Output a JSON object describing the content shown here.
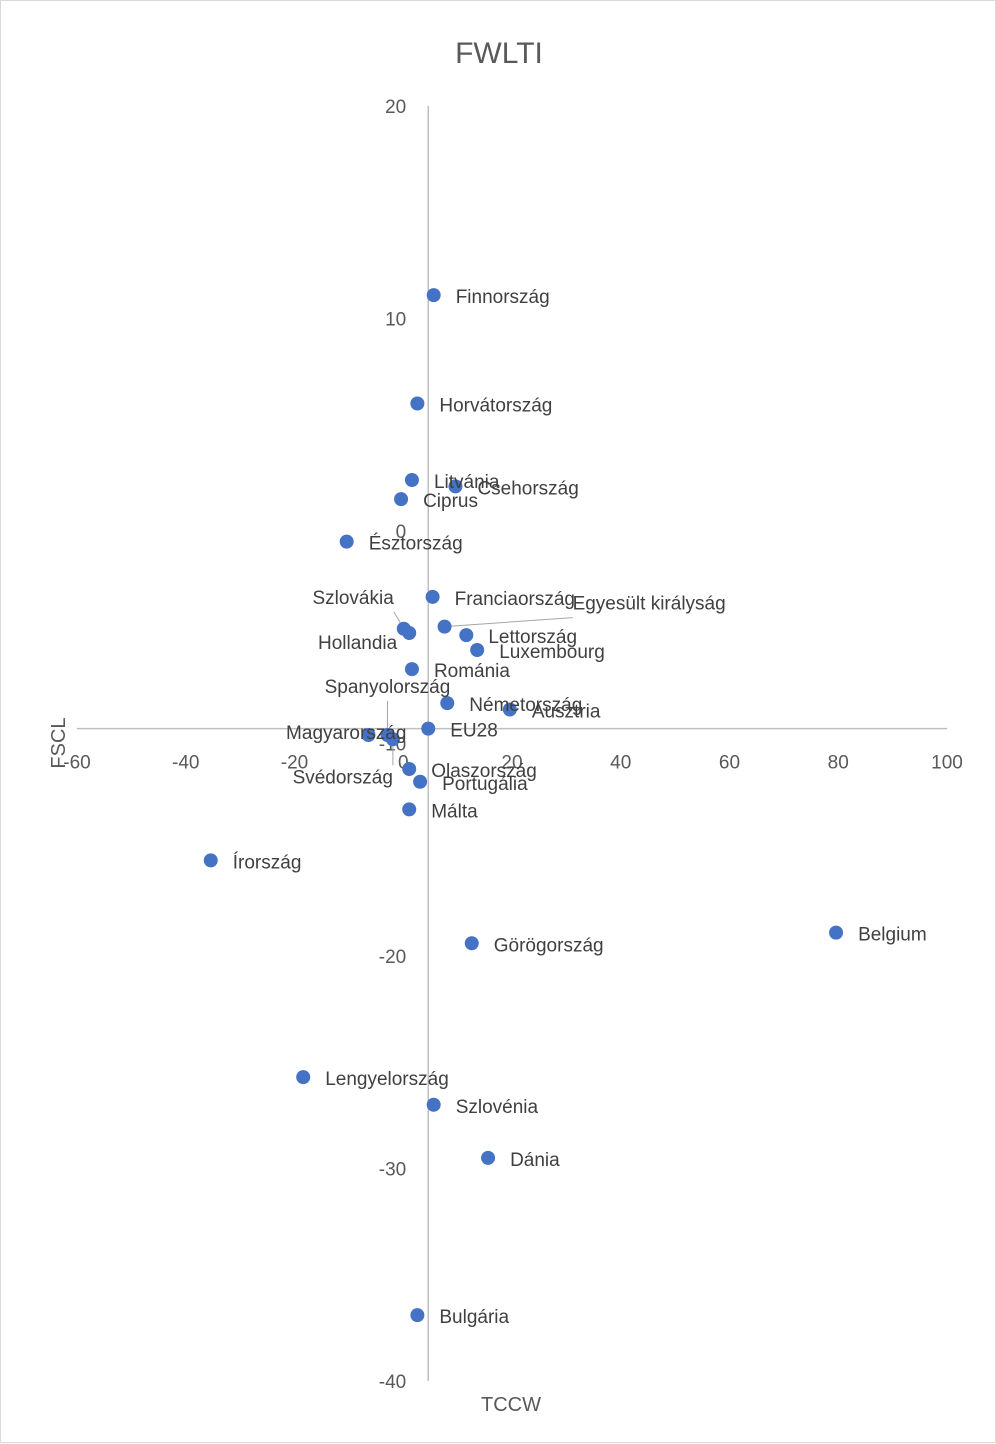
{
  "chart_data": {
    "type": "scatter",
    "title": "FWLTI",
    "xlabel": "FSCL",
    "ylabel": "TCCW",
    "xlim": [
      -60,
      100
    ],
    "ylim": [
      -40,
      20
    ],
    "x_ticks": [
      "-60",
      "-40",
      "-20",
      "0",
      "20",
      "40",
      "60",
      "80",
      "100"
    ],
    "y_ticks": [
      "20",
      "10",
      "0",
      "-10",
      "-20",
      "-30",
      "-40"
    ],
    "grid": false,
    "legend": "none",
    "marker_color": "#4472c4",
    "points": [
      {
        "label": "Finnország",
        "x": 1,
        "y": 11.1
      },
      {
        "label": "Horvátország",
        "x": -2,
        "y": 6
      },
      {
        "label": "Litvánia",
        "x": -3,
        "y": 2.4
      },
      {
        "label": "Csehország",
        "x": 5,
        "y": 2.1
      },
      {
        "label": "Ciprus",
        "x": -5,
        "y": 1.5
      },
      {
        "label": "Észtország",
        "x": -15,
        "y": -0.5
      },
      {
        "label": "Franciaország",
        "x": 0.8,
        "y": -3.1
      },
      {
        "label": "Egyesült királyság",
        "x": 3,
        "y": -4.5
      },
      {
        "label": "Szlovákia",
        "x": -4.5,
        "y": -4.6
      },
      {
        "label": "Hollandia",
        "x": -3.5,
        "y": -4.8
      },
      {
        "label": "Lettország",
        "x": 7,
        "y": -4.9
      },
      {
        "label": "Luxembourg",
        "x": 9,
        "y": -5.6
      },
      {
        "label": "Románia",
        "x": -3,
        "y": -6.5
      },
      {
        "label": "Németország",
        "x": 3.5,
        "y": -8.1
      },
      {
        "label": "Ausztria",
        "x": 15,
        "y": -8.4
      },
      {
        "label": "Spanyolország",
        "x": -7.5,
        "y": -9.6
      },
      {
        "label": "EU28",
        "x": 0,
        "y": -9.3
      },
      {
        "label": "Magyarország",
        "x": -11,
        "y": -9.6
      },
      {
        "label": "Svédország",
        "x": -6.5,
        "y": -9.8
      },
      {
        "label": "Olaszország",
        "x": -3.5,
        "y": -11.2
      },
      {
        "label": "Portugália",
        "x": -1.5,
        "y": -11.8
      },
      {
        "label": "Málta",
        "x": -3.5,
        "y": -13.1
      },
      {
        "label": "Írország",
        "x": -40,
        "y": -15.5
      },
      {
        "label": "Görögország",
        "x": 8,
        "y": -19.4
      },
      {
        "label": "Belgium",
        "x": 75,
        "y": -18.9
      },
      {
        "label": "Lengyelország",
        "x": -23,
        "y": -25.7
      },
      {
        "label": "Szlovénia",
        "x": 1,
        "y": -27
      },
      {
        "label": "Dánia",
        "x": 11,
        "y": -29.5
      },
      {
        "label": "Bulgária",
        "x": -2,
        "y": -36.9
      }
    ]
  }
}
